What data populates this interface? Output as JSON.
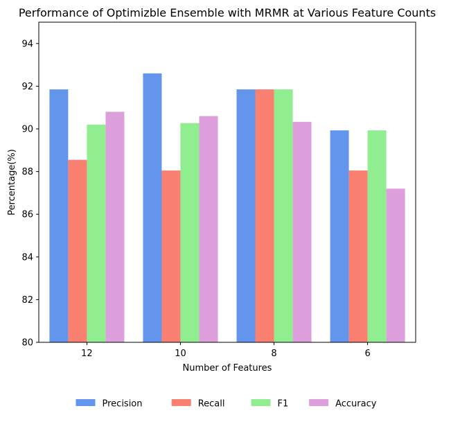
{
  "chart_data": {
    "type": "bar",
    "title": "Performance of Optimizble Ensemble with MRMR at Various Feature Counts",
    "xlabel": "Number of Features",
    "ylabel": "Percentage(%)",
    "categories": [
      "12",
      "10",
      "8",
      "6"
    ],
    "ylim": [
      80,
      95
    ],
    "yticks": [
      80,
      82,
      84,
      86,
      88,
      90,
      92,
      94
    ],
    "grid": false,
    "legend_position": "bottom-center",
    "series": [
      {
        "name": "Precision",
        "color": "#6495ED",
        "values": [
          91.85,
          92.6,
          91.85,
          89.93
        ]
      },
      {
        "name": "Recall",
        "color": "#FA8072",
        "values": [
          88.55,
          88.05,
          91.85,
          88.05
        ]
      },
      {
        "name": "F1",
        "color": "#90EE90",
        "values": [
          90.2,
          90.27,
          91.85,
          89.93
        ]
      },
      {
        "name": "Accuracy",
        "color": "#DDA0DD",
        "values": [
          90.8,
          90.6,
          90.33,
          87.2
        ]
      }
    ]
  }
}
